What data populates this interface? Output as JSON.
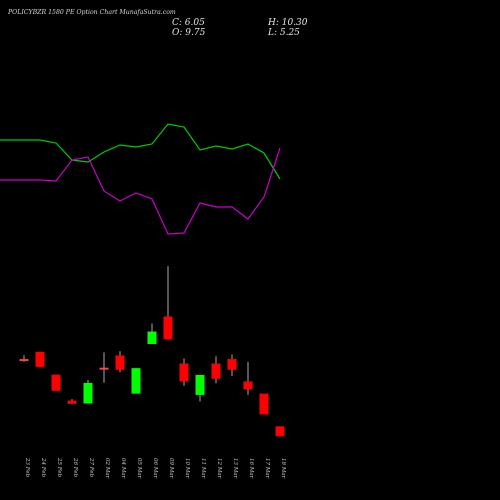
{
  "header": {
    "title": "POLICYBZR 1580  PE Option  Chart  MunafaSutra.com",
    "close": "C: 6.05",
    "open": "O: 9.75",
    "high": "H: 10.30",
    "low": "L: 5.25"
  },
  "colors": {
    "background": "#000000",
    "bullish": "#00ff00",
    "bearish": "#ff0000",
    "doji": "#ff4444",
    "wick": "#aaaaaa",
    "green_line": "#00cc00",
    "magenta_line": "#cc00cc",
    "date_labels": "#cccccc"
  },
  "chart_data": [
    {
      "type": "line",
      "x": [
        "23 Feb",
        "24 Feb",
        "25 Feb",
        "26 Feb",
        "27 Feb",
        "02 Mar",
        "04 Mar",
        "05 Mar",
        "06 Mar",
        "09 Mar",
        "10 Mar",
        "11 Mar",
        "12 Mar",
        "13 Mar",
        "16 Mar",
        "17 Mar",
        "18 Mar"
      ],
      "series": [
        {
          "values": [
            140,
            140,
            143,
            160,
            162,
            152,
            145,
            147,
            144,
            124,
            127,
            150,
            146,
            149,
            144,
            153,
            179
          ],
          "color": "#00cc00"
        },
        {
          "values": [
            180,
            180,
            181,
            160,
            157,
            191,
            201,
            193,
            199,
            234,
            233,
            203,
            207,
            207,
            219,
            197,
            148
          ],
          "color": "#cc00cc"
        }
      ],
      "ylim": [
        118,
        240
      ]
    },
    {
      "type": "candlestick",
      "x": [
        "23 Feb",
        "24 Feb",
        "25 Feb",
        "26 Feb",
        "27 Feb",
        "02 Mar",
        "04 Mar",
        "05 Mar",
        "06 Mar",
        "09 Mar",
        "10 Mar",
        "11 Mar",
        "12 Mar",
        "13 Mar",
        "16 Mar",
        "17 Mar",
        "18 Mar"
      ],
      "candles": [
        {
          "o": 50.0,
          "h": 51.5,
          "l": 49.0,
          "c": 50.0
        },
        {
          "o": 52.8,
          "h": 52.8,
          "l": 47.0,
          "c": 47.0
        },
        {
          "o": 44.0,
          "h": 44.0,
          "l": 37.8,
          "c": 37.8
        },
        {
          "o": 34.0,
          "h": 34.6,
          "l": 32.6,
          "c": 32.8
        },
        {
          "o": 32.9,
          "h": 42.0,
          "l": 32.9,
          "c": 40.8
        },
        {
          "o": 46.7,
          "h": 52.6,
          "l": 40.9,
          "c": 46.7
        },
        {
          "o": 51.4,
          "h": 53.0,
          "l": 45.0,
          "c": 45.9
        },
        {
          "o": 36.7,
          "h": 46.5,
          "l": 36.7,
          "c": 46.5
        },
        {
          "o": 55.8,
          "h": 63.7,
          "l": 55.8,
          "c": 60.6
        },
        {
          "o": 66.4,
          "h": 85.8,
          "l": 57.6,
          "c": 57.6
        },
        {
          "o": 48.3,
          "h": 50.2,
          "l": 39.7,
          "c": 41.4
        },
        {
          "o": 36.2,
          "h": 43.9,
          "l": 33.7,
          "c": 43.9
        },
        {
          "o": 48.3,
          "h": 51.1,
          "l": 40.7,
          "c": 42.4
        },
        {
          "o": 50.0,
          "h": 51.7,
          "l": 43.5,
          "c": 45.9
        },
        {
          "o": 41.4,
          "h": 49.0,
          "l": 36.2,
          "c": 38.3
        },
        {
          "o": 36.7,
          "h": 36.7,
          "l": 28.7,
          "c": 28.7
        },
        {
          "o": 24.1,
          "h": 24.1,
          "l": 20.3,
          "c": 20.3
        }
      ],
      "ylim": [
        15,
        92
      ]
    }
  ]
}
